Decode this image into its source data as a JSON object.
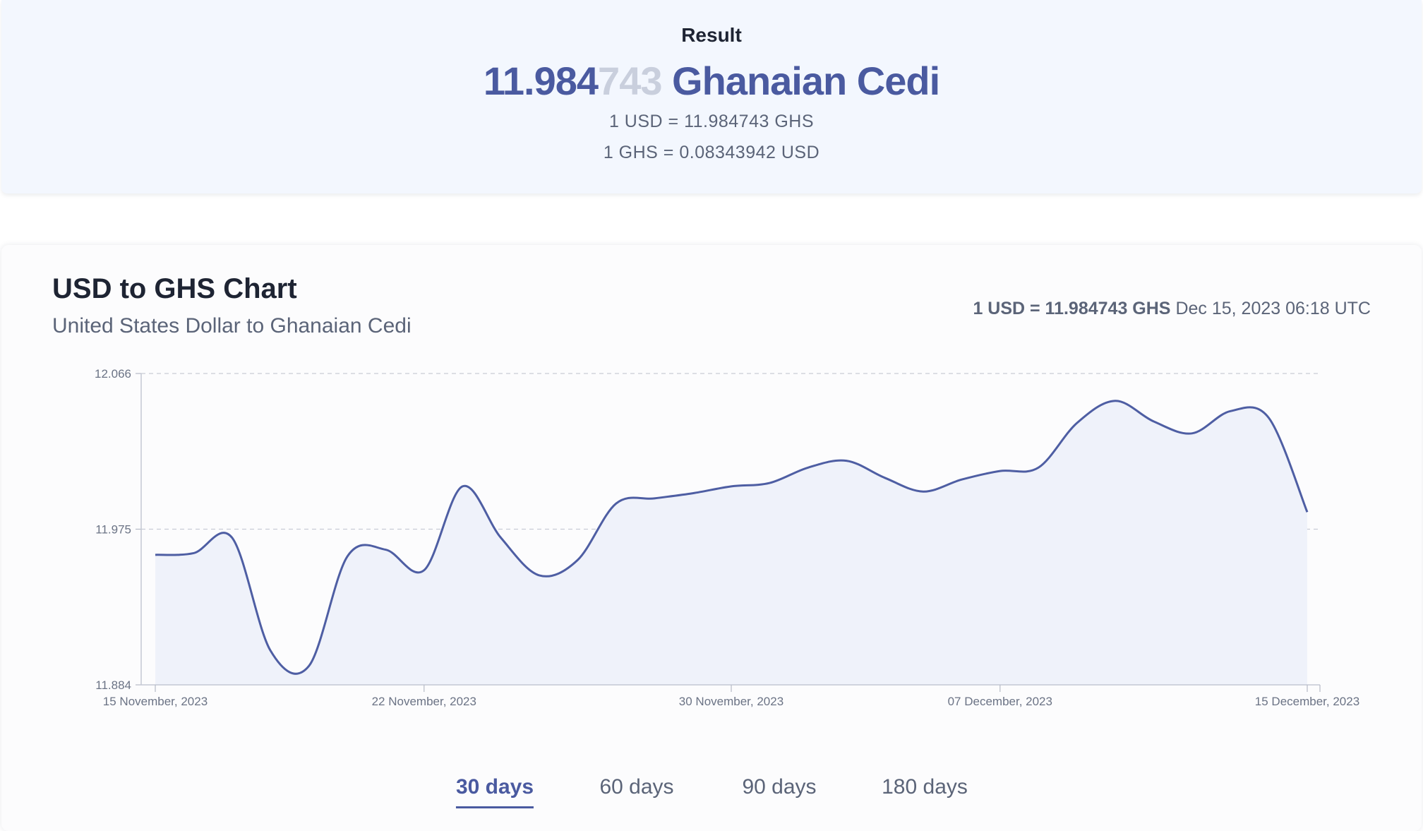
{
  "result": {
    "label": "Result",
    "amount_main": "11.984",
    "amount_faded": "743",
    "currency_name": "Ghanaian Cedi",
    "rate_line_1": "1 USD = 11.984743 GHS",
    "rate_line_2": "1 GHS = 0.08343942 USD"
  },
  "chart_card": {
    "rate_bold": "1 USD = 11.984743 GHS",
    "timestamp": "Dec 15, 2023 06:18 UTC"
  },
  "tabs": [
    {
      "label": "30 days",
      "active": true
    },
    {
      "label": "60 days",
      "active": false
    },
    {
      "label": "90 days",
      "active": false
    },
    {
      "label": "180 days",
      "active": false
    }
  ],
  "colors": {
    "accent": "#4a5aa0",
    "line": "#4e5ea3",
    "area_fill": "#eff2fa",
    "grid": "#c8ccd6"
  },
  "chart_data": {
    "type": "area",
    "title": "USD to GHS Chart",
    "subtitle": "United States Dollar to Ghanaian Cedi",
    "xlabel": "",
    "ylabel": "",
    "x_range": [
      "2023-11-15",
      "2023-12-15"
    ],
    "ylim": [
      11.884,
      12.066
    ],
    "y_ticks": [
      11.884,
      11.975,
      12.066
    ],
    "y_tick_labels": [
      "11.884",
      "11.975",
      "12.066"
    ],
    "x_tick_dates": [
      "2023-11-15",
      "2023-11-22",
      "2023-11-30",
      "2023-12-07",
      "2023-12-15"
    ],
    "x_tick_labels": [
      "15 November, 2023",
      "22 November, 2023",
      "30 November, 2023",
      "07 December, 2023",
      "15 December, 2023"
    ],
    "grid": "horizontal dashed",
    "series": [
      {
        "values": [
          {
            "x": "2023-11-15",
            "y": 11.96
          },
          {
            "x": "2023-11-16",
            "y": 11.961
          },
          {
            "x": "2023-11-17",
            "y": 11.97
          },
          {
            "x": "2023-11-18",
            "y": 11.904
          },
          {
            "x": "2023-11-19",
            "y": 11.895
          },
          {
            "x": "2023-11-20",
            "y": 11.959
          },
          {
            "x": "2023-11-21",
            "y": 11.963
          },
          {
            "x": "2023-11-22",
            "y": 11.951
          },
          {
            "x": "2023-11-23",
            "y": 12.0
          },
          {
            "x": "2023-11-24",
            "y": 11.97
          },
          {
            "x": "2023-11-25",
            "y": 11.948
          },
          {
            "x": "2023-11-26",
            "y": 11.957
          },
          {
            "x": "2023-11-27",
            "y": 11.99
          },
          {
            "x": "2023-11-28",
            "y": 11.993
          },
          {
            "x": "2023-11-29",
            "y": 11.996
          },
          {
            "x": "2023-11-30",
            "y": 12.0
          },
          {
            "x": "2023-12-01",
            "y": 12.002
          },
          {
            "x": "2023-12-02",
            "y": 12.011
          },
          {
            "x": "2023-12-03",
            "y": 12.015
          },
          {
            "x": "2023-12-04",
            "y": 12.005
          },
          {
            "x": "2023-12-05",
            "y": 11.997
          },
          {
            "x": "2023-12-06",
            "y": 12.004
          },
          {
            "x": "2023-12-07",
            "y": 12.009
          },
          {
            "x": "2023-12-08",
            "y": 12.011
          },
          {
            "x": "2023-12-09",
            "y": 12.037
          },
          {
            "x": "2023-12-10",
            "y": 12.05
          },
          {
            "x": "2023-12-11",
            "y": 12.038
          },
          {
            "x": "2023-12-12",
            "y": 12.031
          },
          {
            "x": "2023-12-13",
            "y": 12.044
          },
          {
            "x": "2023-12-14",
            "y": 12.04
          },
          {
            "x": "2023-12-15",
            "y": 11.985
          }
        ]
      }
    ]
  }
}
